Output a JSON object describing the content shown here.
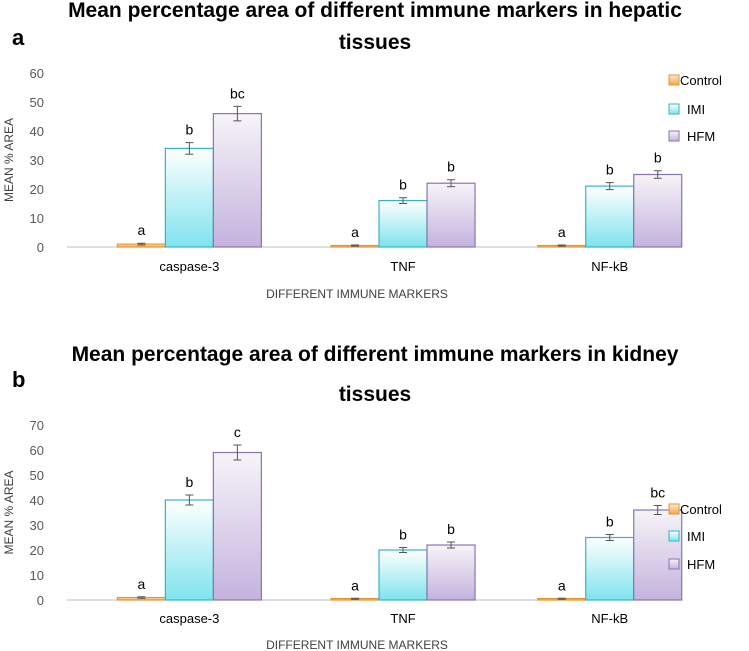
{
  "chart_data": [
    {
      "type": "bar",
      "panel": "a",
      "title_lines": [
        "Mean percentage area of different immune markers in hepatic",
        "tissues"
      ],
      "xlabel": "DIFFERENT IMMUNE MARKERS",
      "ylabel": "MEAN % AREA",
      "ylim": [
        0,
        60
      ],
      "yticks": [
        0,
        10,
        20,
        30,
        40,
        50,
        60
      ],
      "categories": [
        "caspase-3",
        "TNF",
        "NF-kB"
      ],
      "series": [
        {
          "name": "Control",
          "values": [
            1,
            0.5,
            0.5
          ],
          "errors": [
            0.3,
            0.2,
            0.2
          ],
          "letters": [
            "a",
            "a",
            "a"
          ]
        },
        {
          "name": "IMI",
          "values": [
            34,
            16,
            21
          ],
          "errors": [
            2,
            1,
            1.2
          ],
          "letters": [
            "b",
            "b",
            "b"
          ]
        },
        {
          "name": "HFM",
          "values": [
            46,
            22,
            25
          ],
          "errors": [
            2.5,
            1.2,
            1.3
          ],
          "letters": [
            "bc",
            "b",
            "b"
          ]
        }
      ],
      "legend_position": "right",
      "grid": false
    },
    {
      "type": "bar",
      "panel": "b",
      "title_lines": [
        "Mean percentage area of different immune markers in kidney",
        "tissues"
      ],
      "xlabel": "DIFFERENT IMMUNE MARKERS",
      "ylabel": "MEAN % AREA",
      "ylim": [
        0,
        70
      ],
      "yticks": [
        0,
        10,
        20,
        30,
        40,
        50,
        60,
        70
      ],
      "categories": [
        "caspase-3",
        "TNF",
        "NF-kB"
      ],
      "series": [
        {
          "name": "Control",
          "values": [
            1,
            0.5,
            0.5
          ],
          "errors": [
            0.3,
            0.2,
            0.2
          ],
          "letters": [
            "a",
            "a",
            "a"
          ]
        },
        {
          "name": "IMI",
          "values": [
            40,
            20,
            25
          ],
          "errors": [
            2,
            1,
            1.2
          ],
          "letters": [
            "b",
            "b",
            "b"
          ]
        },
        {
          "name": "HFM",
          "values": [
            59,
            22,
            36
          ],
          "errors": [
            3,
            1.2,
            1.8
          ],
          "letters": [
            "c",
            "b",
            "bc"
          ]
        }
      ],
      "legend_position": "right",
      "grid": false
    }
  ],
  "colors": {
    "Control": {
      "top": "#fde9d3",
      "bottom": "#f5a54a",
      "stroke": "#e8942f"
    },
    "IMI": {
      "top": "#ffffff",
      "bottom": "#7fe3ee",
      "stroke": "#2fb6c8"
    },
    "HFM": {
      "top": "#f6f4f8",
      "bottom": "#c4b3de",
      "stroke": "#8a74b0"
    }
  }
}
